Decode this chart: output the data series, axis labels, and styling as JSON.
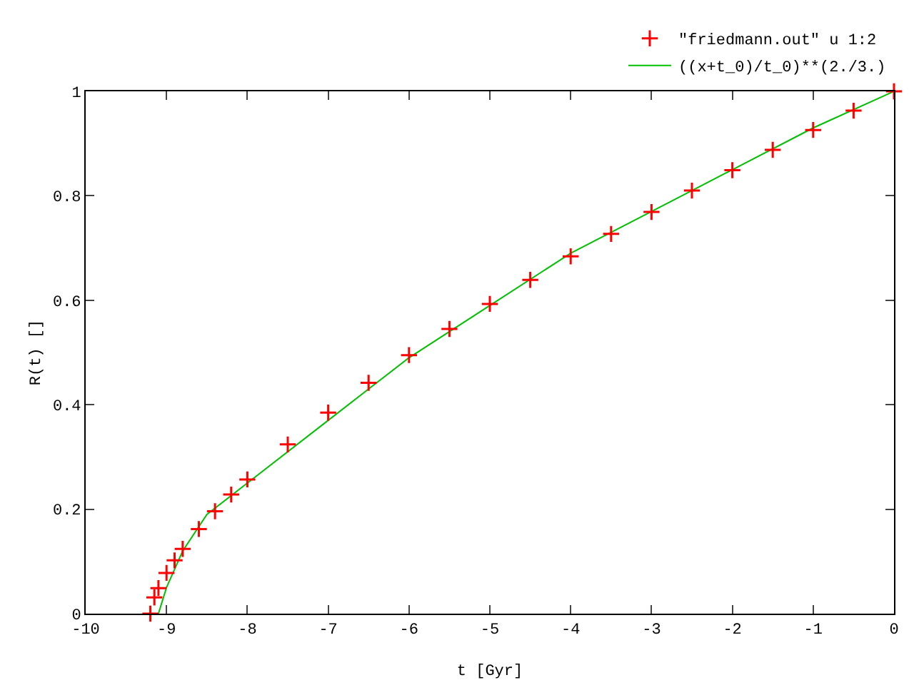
{
  "chart_data": {
    "type": "scatter",
    "xlabel": "t [Gyr]",
    "ylabel": "R(t) []",
    "xlim": [
      -10,
      0
    ],
    "ylim": [
      0,
      1
    ],
    "xticks": [
      -10,
      -9,
      -8,
      -7,
      -6,
      -5,
      -4,
      -3,
      -2,
      -1,
      0
    ],
    "yticks": [
      0,
      0.2,
      0.4,
      0.6,
      0.8,
      1
    ],
    "grid": false,
    "legend": "top right",
    "series": [
      {
        "name": "((x+t_0)/t_0)**(2./3.)",
        "type": "line",
        "color": "#00c000",
        "line_style": "solid",
        "marker": "none",
        "x": [
          -9.1,
          -9.0,
          -8.8,
          -8.5,
          -8,
          -7,
          -6,
          -5,
          -4,
          -3,
          -2,
          -1,
          0
        ],
        "values": [
          0,
          0.05,
          0.12,
          0.19,
          0.25,
          0.37,
          0.49,
          0.59,
          0.69,
          0.77,
          0.85,
          0.93,
          1
        ]
      },
      {
        "name": "\"friedmann.out\" u 1:2",
        "color": "#ff0000",
        "marker": "cross",
        "x": [
          -9.2,
          -9.15,
          -9.1,
          -9.0,
          -8.9,
          -8.8,
          -8.6,
          -8.4,
          -8.2,
          -8.0,
          -7.5,
          -7.0,
          -6.5,
          -6.0,
          -5.5,
          -5.0,
          -4.5,
          -4.0,
          -3.5,
          -3.0,
          -2.5,
          -2.0,
          -1.5,
          -1.0,
          -0.5,
          0
        ],
        "values": [
          0,
          0.031,
          0.049,
          0.078,
          0.102,
          0.124,
          0.162,
          0.196,
          0.228,
          0.257,
          0.324,
          0.385,
          0.442,
          0.495,
          0.545,
          0.593,
          0.639,
          0.684,
          0.727,
          0.769,
          0.81,
          0.849,
          0.888,
          0.926,
          0.963,
          1
        ]
      }
    ]
  }
}
